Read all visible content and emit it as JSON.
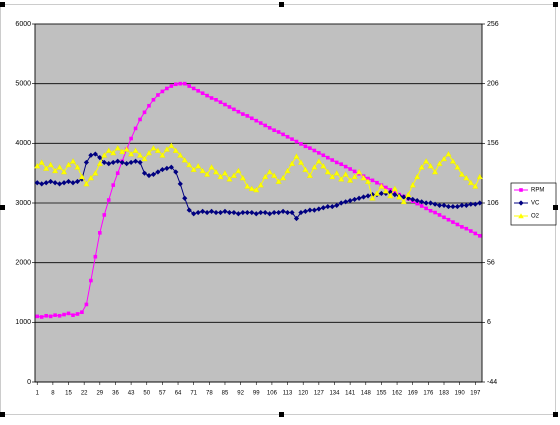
{
  "chart_data": {
    "type": "line",
    "x": [
      1,
      3,
      5,
      7,
      9,
      11,
      13,
      15,
      17,
      19,
      21,
      23,
      25,
      27,
      29,
      31,
      33,
      35,
      37,
      39,
      41,
      43,
      45,
      47,
      49,
      51,
      53,
      55,
      57,
      59,
      61,
      63,
      65,
      67,
      69,
      71,
      73,
      75,
      77,
      79,
      81,
      83,
      85,
      87,
      89,
      91,
      93,
      95,
      97,
      99,
      101,
      103,
      105,
      107,
      109,
      111,
      113,
      115,
      117,
      119,
      121,
      123,
      125,
      127,
      129,
      131,
      133,
      135,
      137,
      139,
      141,
      143,
      145,
      147,
      149,
      151,
      153,
      155,
      157,
      159,
      161,
      163,
      165,
      167,
      169,
      171,
      173,
      175,
      177,
      179,
      181,
      183,
      185,
      187,
      189,
      191,
      193,
      195,
      197,
      199
    ],
    "xlim": [
      0,
      200
    ],
    "xticks": [
      1,
      8,
      15,
      22,
      29,
      36,
      43,
      50,
      57,
      64,
      71,
      78,
      85,
      92,
      99,
      106,
      113,
      120,
      127,
      134,
      141,
      148,
      155,
      162,
      169,
      176,
      183,
      190,
      197
    ],
    "ylim": [
      0,
      6000
    ],
    "yticks": [
      0,
      1000,
      2000,
      3000,
      4000,
      5000,
      6000
    ],
    "y2lim": [
      -44,
      256
    ],
    "y2ticks": [
      -44,
      6,
      56,
      106,
      156,
      206,
      256
    ],
    "grid": true,
    "legend": "right",
    "series": [
      {
        "name": "RPM",
        "color": "#ff00ff",
        "marker": "square",
        "values": [
          1100,
          1090,
          1110,
          1100,
          1120,
          1110,
          1130,
          1150,
          1120,
          1140,
          1170,
          1300,
          1700,
          2100,
          2500,
          2800,
          3050,
          3300,
          3500,
          3700,
          3900,
          4080,
          4250,
          4400,
          4520,
          4630,
          4730,
          4810,
          4870,
          4920,
          4960,
          4990,
          5000,
          5000,
          4960,
          4920,
          4880,
          4840,
          4800,
          4760,
          4730,
          4690,
          4650,
          4610,
          4570,
          4530,
          4490,
          4460,
          4420,
          4380,
          4340,
          4300,
          4260,
          4220,
          4190,
          4150,
          4110,
          4070,
          4030,
          3990,
          3950,
          3920,
          3880,
          3840,
          3800,
          3760,
          3720,
          3680,
          3650,
          3610,
          3570,
          3530,
          3490,
          3450,
          3410,
          3380,
          3340,
          3300,
          3260,
          3220,
          3180,
          3140,
          3110,
          3070,
          3030,
          2990,
          2950,
          2910,
          2870,
          2840,
          2800,
          2760,
          2720,
          2680,
          2640,
          2600,
          2570,
          2530,
          2490,
          2450
        ]
      },
      {
        "name": "VC",
        "color": "#000080",
        "marker": "diamond",
        "axis": "y2",
        "values": [
          123,
          122,
          123,
          124,
          123,
          122,
          123,
          124,
          123,
          124,
          126,
          140,
          146,
          147,
          144,
          140,
          139,
          140,
          141,
          140,
          139,
          140,
          141,
          140,
          131,
          129,
          130,
          132,
          134,
          135,
          136,
          132,
          122,
          110,
          100,
          97,
          98,
          99,
          98,
          99,
          98,
          98,
          99,
          98,
          98,
          97,
          98,
          98,
          98,
          97,
          98,
          98,
          97,
          98,
          98,
          99,
          98,
          98,
          93,
          98,
          99,
          100,
          100,
          101,
          102,
          103,
          103,
          104,
          106,
          107,
          108,
          109,
          110,
          111,
          112,
          113,
          113,
          114,
          114,
          115,
          113,
          112,
          111,
          110,
          109,
          108,
          107,
          106,
          106,
          105,
          104,
          104,
          103,
          103,
          103,
          104,
          104,
          105,
          105,
          106
        ]
      },
      {
        "name": "O2",
        "color": "#ffff00",
        "marker": "triangle",
        "axis": "y2",
        "values": [
          137,
          140,
          135,
          138,
          133,
          136,
          132,
          138,
          141,
          136,
          128,
          122,
          127,
          131,
          139,
          146,
          150,
          148,
          152,
          149,
          151,
          147,
          150,
          146,
          143,
          148,
          152,
          150,
          146,
          151,
          154,
          150,
          146,
          142,
          138,
          134,
          137,
          133,
          130,
          136,
          132,
          128,
          131,
          126,
          129,
          133,
          127,
          120,
          118,
          117,
          121,
          128,
          132,
          129,
          124,
          127,
          133,
          139,
          145,
          140,
          134,
          129,
          136,
          141,
          137,
          132,
          128,
          131,
          126,
          130,
          125,
          128,
          132,
          127,
          124,
          110,
          114,
          120,
          116,
          112,
          118,
          111,
          107,
          113,
          121,
          128,
          136,
          141,
          137,
          132,
          139,
          143,
          147,
          141,
          136,
          130,
          127,
          123,
          120,
          128
        ]
      }
    ]
  }
}
